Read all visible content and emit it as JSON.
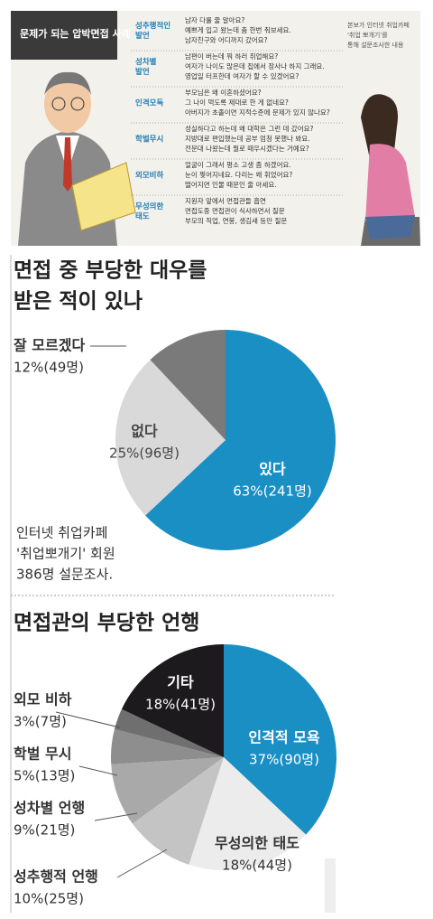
{
  "header_panel": {
    "title": "문제가 되는 압박면접 사례",
    "note": [
      "본보가 인터넷 취업카페",
      "'취업 뽀개기'를",
      "통해 설문조사한 내용"
    ],
    "rows": [
      {
        "category": [
          "성추행적인",
          "발언"
        ],
        "items": [
          "남자 다룰 줄 알아요?",
          "예쁘게 입고 왔는데 춤 한번 춰보세요.",
          "남자친구와 어디까지 갔어요?"
        ]
      },
      {
        "category": [
          "성차별",
          "발언"
        ],
        "items": [
          "남편이 버는데 뭐 하러 취업해요?",
          "여자가 나이도 많은데 집에서 장사나 하지 그래요.",
          "영업일 터프한데 여자가 할 수 있겠어요?"
        ]
      },
      {
        "category": [
          "인격모독"
        ],
        "items": [
          "부모님은 왜 이혼하셨어요?",
          "그 나이 먹도록 제대로 한 게 없네요?",
          "아버지가 초졸이면 지적수준에 문제가 있지 않나요?"
        ]
      },
      {
        "category": [
          "학벌무시"
        ],
        "items": [
          "성실하다고 하는데 왜 대학은 그런 데 갔어요?",
          "지방대로 편입했는데 공부 엄청 못했나 봐요.",
          "전문대 나왔는데 뭘로 때우시겠다는 거예요?"
        ]
      },
      {
        "category": [
          "외모비하"
        ],
        "items": [
          "얼굴이 그래서 평소 고생 좀 하겠어요.",
          "눈이 찢어지네요. 다리는 왜 휘었어요?",
          "떨어지면 인물 때문인 줄 아세요."
        ]
      },
      {
        "category": [
          "무성의한",
          "태도"
        ],
        "items": [
          "지원자 앞에서 면접관들 흡연",
          "면접도중 면접관이 식사하면서 질문",
          "부모의 직업, 연봉, 생김새 등만 질문"
        ]
      }
    ]
  },
  "chart_data": [
    {
      "type": "pie",
      "title": [
        "면접 중 부당한 대우를",
        "받은 적이 있나"
      ],
      "categories": [
        "있다",
        "없다",
        "잘 모르겠다"
      ],
      "values": [
        63,
        25,
        12
      ],
      "value_labels": [
        "63%(241명)",
        "25%(96명)",
        "12%(49명)"
      ],
      "colors": [
        "#1a8fc4",
        "#d9d9d9",
        "#7a7a7a"
      ],
      "note": [
        "인터넷 취업카페",
        "'취업뽀개기' 회원",
        "386명 설문조사."
      ]
    },
    {
      "type": "pie",
      "title": [
        "면접관의 부당한 언행"
      ],
      "categories": [
        "인격적 모욕",
        "무성의한 태도",
        "성추행적 언행",
        "성차별 언행",
        "학벌 무시",
        "외모 비하",
        "기타"
      ],
      "values": [
        37,
        18,
        10,
        9,
        5,
        3,
        18
      ],
      "value_labels": [
        "37%(90명)",
        "18%(44명)",
        "10%(25명)",
        "9%(21명)",
        "5%(13명)",
        "3%(7명)",
        "18%(41명)"
      ],
      "colors": [
        "#1a8fc4",
        "#ececec",
        "#c4c4c4",
        "#a9a9a9",
        "#8e8e8e",
        "#6f6f6f",
        "#1c1a1c"
      ]
    }
  ]
}
